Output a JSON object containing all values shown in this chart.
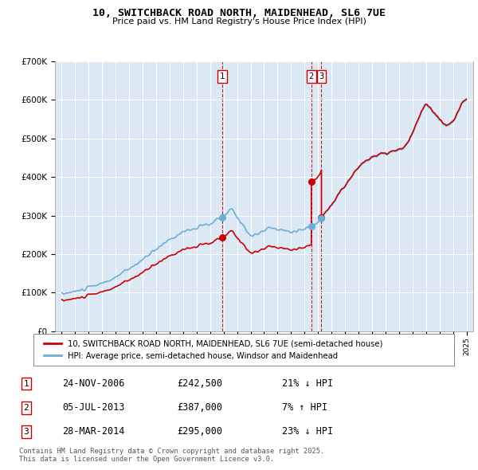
{
  "title": "10, SWITCHBACK ROAD NORTH, MAIDENHEAD, SL6 7UE",
  "subtitle": "Price paid vs. HM Land Registry's House Price Index (HPI)",
  "hpi_label": "HPI: Average price, semi-detached house, Windsor and Maidenhead",
  "price_label": "10, SWITCHBACK ROAD NORTH, MAIDENHEAD, SL6 7UE (semi-detached house)",
  "footer": "Contains HM Land Registry data © Crown copyright and database right 2025.\nThis data is licensed under the Open Government Licence v3.0.",
  "transactions": [
    {
      "num": 1,
      "date": "24-NOV-2006",
      "price": "£242,500",
      "pct": "21% ↓ HPI",
      "year": 2006.9
    },
    {
      "num": 2,
      "date": "05-JUL-2013",
      "price": "£387,000",
      "pct": "7% ↑ HPI",
      "year": 2013.5
    },
    {
      "num": 3,
      "date": "28-MAR-2014",
      "price": "£295,000",
      "pct": "23% ↓ HPI",
      "year": 2014.25
    }
  ],
  "hpi_color": "#6baed6",
  "price_color": "#cc0000",
  "vline_color": "#cc0000",
  "bg_color": "#dce9f5",
  "ylim": [
    0,
    700000
  ],
  "yticks": [
    0,
    100000,
    200000,
    300000,
    400000,
    500000,
    600000,
    700000
  ],
  "xlim_start": 1994.5,
  "xlim_end": 2025.5
}
